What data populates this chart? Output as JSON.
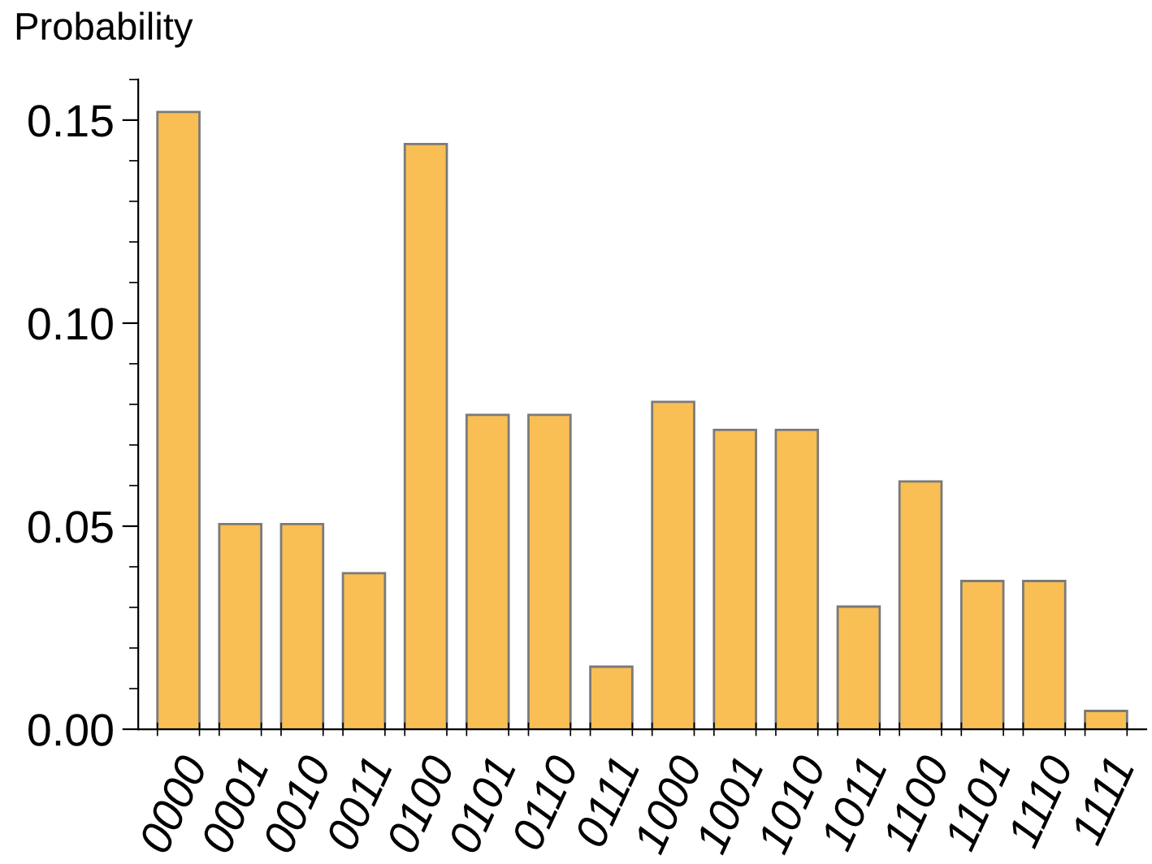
{
  "chart_data": {
    "type": "bar",
    "ylabel": "Probability",
    "categories": [
      "0000",
      "0001",
      "0010",
      "0011",
      "0100",
      "0101",
      "0110",
      "0111",
      "1000",
      "1001",
      "1010",
      "1011",
      "1100",
      "1101",
      "1110",
      "1111"
    ],
    "values": [
      0.152,
      0.0505,
      0.0505,
      0.0384,
      0.1441,
      0.0774,
      0.0774,
      0.0154,
      0.0806,
      0.0737,
      0.0737,
      0.0302,
      0.061,
      0.0365,
      0.0365,
      0.0045
    ],
    "color": "#f9bf54",
    "ylim": [
      0,
      0.16
    ],
    "yticks": [
      {
        "value": 0,
        "label": "0.00"
      },
      {
        "value": 0.05,
        "label": "0.05"
      },
      {
        "value": 0.1,
        "label": "0.10"
      },
      {
        "value": 0.15,
        "label": "0.15"
      }
    ],
    "grid": false
  }
}
